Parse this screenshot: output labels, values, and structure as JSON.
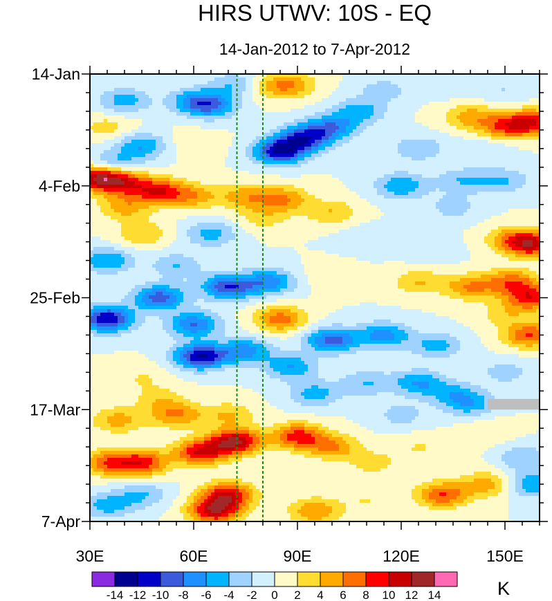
{
  "chart_data": {
    "type": "heatmap",
    "subtype": "hovmoller-contour",
    "title": "HIRS UTWV: 10S - EQ",
    "subtitle": "14-Jan-2012 to 7-Apr-2012",
    "x_axis": {
      "range": [
        30,
        160
      ],
      "ticks": [
        {
          "value": 30,
          "label": "30E"
        },
        {
          "value": 60,
          "label": "60E"
        },
        {
          "value": 90,
          "label": "90E"
        },
        {
          "value": 120,
          "label": "120E"
        },
        {
          "value": 150,
          "label": "150E"
        }
      ]
    },
    "y_axis": {
      "range_days": [
        0,
        84
      ],
      "direction": "downward",
      "ticks": [
        {
          "day": 0,
          "label": "14-Jan"
        },
        {
          "day": 21,
          "label": "4-Feb"
        },
        {
          "day": 42,
          "label": "25-Feb"
        },
        {
          "day": 63,
          "label": "17-Mar"
        },
        {
          "day": 84,
          "label": "7-Apr"
        }
      ]
    },
    "reference_lines_lon": [
      72.5,
      80
    ],
    "missing_data": [
      {
        "lon_range": [
          145,
          160
        ],
        "day_range": [
          61,
          63
        ]
      }
    ],
    "colorbar": {
      "unit": "K",
      "levels": [
        -14,
        -12,
        -10,
        -8,
        -6,
        -4,
        -2,
        0,
        2,
        4,
        6,
        8,
        10,
        12,
        14
      ],
      "labels": [
        "-14",
        "-12",
        "-10",
        "-8",
        "-6",
        "-4",
        "-2",
        "0",
        "2",
        "4",
        "6",
        "8",
        "10",
        "12",
        "14"
      ],
      "colors": [
        "#8a2be2",
        "#000090",
        "#0000c8",
        "#3c5adc",
        "#1e90ff",
        "#00b4ff",
        "#a0d2ff",
        "#d2f0ff",
        "#fffac8",
        "#ffdc32",
        "#ffaa00",
        "#ff6e00",
        "#ff0000",
        "#c80000",
        "#a02828",
        "#ff69b4"
      ]
    },
    "anomaly_blobs": [
      {
        "lon": 33,
        "day": 19.5,
        "value": 12
      },
      {
        "lon": 40,
        "day": 20.5,
        "value": 7
      },
      {
        "lon": 50,
        "day": 22,
        "value": 9
      },
      {
        "lon": 60,
        "day": 23,
        "value": 5
      },
      {
        "lon": 37,
        "day": 17,
        "value": -5
      },
      {
        "lon": 45,
        "day": 13.5,
        "value": -6
      },
      {
        "lon": 40,
        "day": 5,
        "value": -5
      },
      {
        "lon": 60,
        "day": 5,
        "value": -5
      },
      {
        "lon": 65,
        "day": 6,
        "value": -7
      },
      {
        "lon": 72,
        "day": 2,
        "value": -4
      },
      {
        "lon": 82,
        "day": 2.5,
        "value": 3
      },
      {
        "lon": 88,
        "day": 2,
        "value": 5
      },
      {
        "lon": 35,
        "day": 10,
        "value": 3
      },
      {
        "lon": 60,
        "day": 13,
        "value": 2
      },
      {
        "lon": 92,
        "day": 12,
        "value": -10
      },
      {
        "lon": 85,
        "day": 14.5,
        "value": -12
      },
      {
        "lon": 100,
        "day": 10,
        "value": -7
      },
      {
        "lon": 108,
        "day": 7,
        "value": -5
      },
      {
        "lon": 115,
        "day": 3,
        "value": -3
      },
      {
        "lon": 135,
        "day": 2,
        "value": -2
      },
      {
        "lon": 140,
        "day": 8,
        "value": 5
      },
      {
        "lon": 150,
        "day": 10,
        "value": 7
      },
      {
        "lon": 158,
        "day": 9,
        "value": 9
      },
      {
        "lon": 145,
        "day": 14,
        "value": -2
      },
      {
        "lon": 125,
        "day": 14,
        "value": -4
      },
      {
        "lon": 120,
        "day": 21,
        "value": -6
      },
      {
        "lon": 138,
        "day": 20,
        "value": -4
      },
      {
        "lon": 75,
        "day": 23,
        "value": 5
      },
      {
        "lon": 86,
        "day": 23.5,
        "value": 6
      },
      {
        "lon": 100,
        "day": 26,
        "value": 4
      },
      {
        "lon": 80,
        "day": 27,
        "value": 3
      },
      {
        "lon": 65,
        "day": 30,
        "value": -5
      },
      {
        "lon": 45,
        "day": 30,
        "value": 4
      },
      {
        "lon": 110,
        "day": 31,
        "value": -2
      },
      {
        "lon": 128,
        "day": 33,
        "value": -2
      },
      {
        "lon": 152,
        "day": 31,
        "value": 5
      },
      {
        "lon": 158,
        "day": 32,
        "value": 10
      },
      {
        "lon": 35,
        "day": 35,
        "value": -6
      },
      {
        "lon": 55,
        "day": 36,
        "value": -4
      },
      {
        "lon": 70,
        "day": 40,
        "value": -10
      },
      {
        "lon": 50,
        "day": 42,
        "value": -9
      },
      {
        "lon": 35,
        "day": 46,
        "value": -12
      },
      {
        "lon": 60,
        "day": 47,
        "value": -8
      },
      {
        "lon": 85,
        "day": 46,
        "value": 7
      },
      {
        "lon": 82,
        "day": 39,
        "value": -7
      },
      {
        "lon": 100,
        "day": 38,
        "value": 2
      },
      {
        "lon": 125,
        "day": 39,
        "value": 4
      },
      {
        "lon": 140,
        "day": 40,
        "value": 6
      },
      {
        "lon": 152,
        "day": 39,
        "value": 7
      },
      {
        "lon": 158,
        "day": 42,
        "value": 9
      },
      {
        "lon": 150,
        "day": 45,
        "value": 3
      },
      {
        "lon": 157,
        "day": 49,
        "value": 8
      },
      {
        "lon": 100,
        "day": 50,
        "value": -9
      },
      {
        "lon": 115,
        "day": 49,
        "value": -7
      },
      {
        "lon": 130,
        "day": 51,
        "value": -5
      },
      {
        "lon": 62,
        "day": 53,
        "value": -12
      },
      {
        "lon": 75,
        "day": 52,
        "value": -7
      },
      {
        "lon": 88,
        "day": 55,
        "value": -6
      },
      {
        "lon": 110,
        "day": 58,
        "value": -4
      },
      {
        "lon": 125,
        "day": 58,
        "value": -6
      },
      {
        "lon": 135,
        "day": 60,
        "value": -4
      },
      {
        "lon": 150,
        "day": 56,
        "value": -3
      },
      {
        "lon": 45,
        "day": 57,
        "value": 2
      },
      {
        "lon": 50,
        "day": 61,
        "value": 3
      },
      {
        "lon": 38,
        "day": 65,
        "value": 5
      },
      {
        "lon": 55,
        "day": 64,
        "value": 6
      },
      {
        "lon": 70,
        "day": 64,
        "value": 4
      },
      {
        "lon": 72,
        "day": 69,
        "value": 12
      },
      {
        "lon": 62,
        "day": 71,
        "value": 10
      },
      {
        "lon": 45,
        "day": 73,
        "value": 9
      },
      {
        "lon": 35,
        "day": 73,
        "value": 7
      },
      {
        "lon": 90,
        "day": 68,
        "value": 9
      },
      {
        "lon": 100,
        "day": 70,
        "value": 6
      },
      {
        "lon": 70,
        "day": 79,
        "value": 10
      },
      {
        "lon": 66,
        "day": 82,
        "value": 11
      },
      {
        "lon": 95,
        "day": 82,
        "value": 6
      },
      {
        "lon": 112,
        "day": 73,
        "value": 3
      },
      {
        "lon": 125,
        "day": 70,
        "value": 2
      },
      {
        "lon": 135,
        "day": 72,
        "value": 1
      },
      {
        "lon": 145,
        "day": 67,
        "value": 2
      },
      {
        "lon": 132,
        "day": 79,
        "value": 8
      },
      {
        "lon": 145,
        "day": 77,
        "value": 5
      },
      {
        "lon": 155,
        "day": 72,
        "value": -4
      },
      {
        "lon": 158,
        "day": 77,
        "value": -6
      },
      {
        "lon": 35,
        "day": 81,
        "value": -5
      },
      {
        "lon": 45,
        "day": 79,
        "value": -4
      },
      {
        "lon": 110,
        "day": 80,
        "value": 2
      },
      {
        "lon": 120,
        "day": 64,
        "value": -3
      },
      {
        "lon": 135,
        "day": 25,
        "value": -3
      },
      {
        "lon": 150,
        "day": 20,
        "value": -4
      },
      {
        "lon": 150,
        "day": 3,
        "value": -2
      },
      {
        "lon": 40,
        "day": 25,
        "value": 5
      },
      {
        "lon": 95,
        "day": 60,
        "value": -5
      },
      {
        "lon": 140,
        "day": 62,
        "value": -5
      }
    ]
  }
}
